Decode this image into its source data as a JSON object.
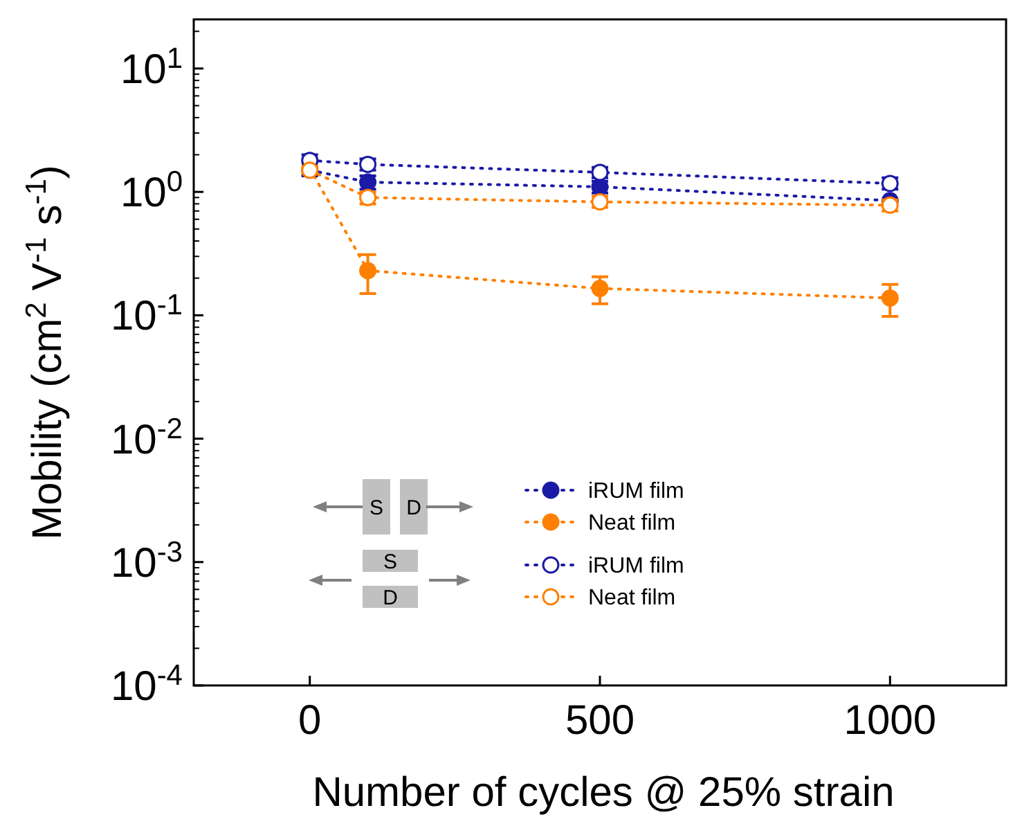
{
  "chart_data": {
    "type": "line",
    "xlabel": "Number of cycles @ 25% strain",
    "ylabel": "Mobility (cm$^{2}$ V$^{-1}$ s$^{-1}$)",
    "x": [
      0,
      100,
      500,
      1000
    ],
    "log": "y",
    "xlim": [
      -200,
      1200
    ],
    "xticks": [
      0,
      500,
      1000
    ],
    "ylim": [
      0.0001,
      25
    ],
    "yticks": [
      {
        "value": 0.0001,
        "label": "10$^{-4}$"
      },
      {
        "value": 0.001,
        "label": "10$^{-3}$"
      },
      {
        "value": 0.01,
        "label": "10$^{-2}$"
      },
      {
        "value": 0.1,
        "label": "10$^{-1}$"
      },
      {
        "value": 1,
        "label": "10$^{0}$"
      },
      {
        "value": 10,
        "label": "10$^{1}$"
      }
    ],
    "grid": false,
    "legend": "bottom left",
    "marker": "circle",
    "line_style": "dotted",
    "annotations": [
      "S",
      "D",
      "S",
      "D"
    ],
    "series": [
      {
        "name": "iRUM film",
        "color": "#1a1aa6",
        "values": [
          1.5,
          1.2,
          1.1,
          0.85
        ],
        "errors": [
          null,
          [
            1.05,
            1.35
          ],
          [
            0.98,
            1.22
          ],
          null
        ]
      },
      {
        "name": "Neat film",
        "color": "#ff8000",
        "values": [
          1.55,
          0.23,
          0.165,
          0.138
        ],
        "errors": [
          [
            1.4,
            1.7
          ],
          [
            0.15,
            0.31
          ],
          [
            0.124,
            0.205
          ],
          [
            0.098,
            0.178
          ]
        ]
      },
      {
        "name": "iRUM film",
        "color": "#1a1aa6",
        "marker": "circle-open",
        "values": [
          1.8,
          1.67,
          1.44,
          1.17
        ],
        "errors": [
          [
            1.35,
            2.0
          ],
          [
            1.5,
            1.85
          ],
          [
            1.3,
            1.58
          ],
          [
            1.05,
            1.3
          ]
        ]
      },
      {
        "name": "Neat film",
        "color": "#ff8000",
        "marker": "circle-open",
        "values": [
          1.5,
          0.9,
          0.83,
          0.78
        ],
        "errors": [
          null,
          [
            0.8,
            1.0
          ],
          [
            0.75,
            0.92
          ],
          [
            0.7,
            0.86
          ]
        ]
      }
    ]
  }
}
